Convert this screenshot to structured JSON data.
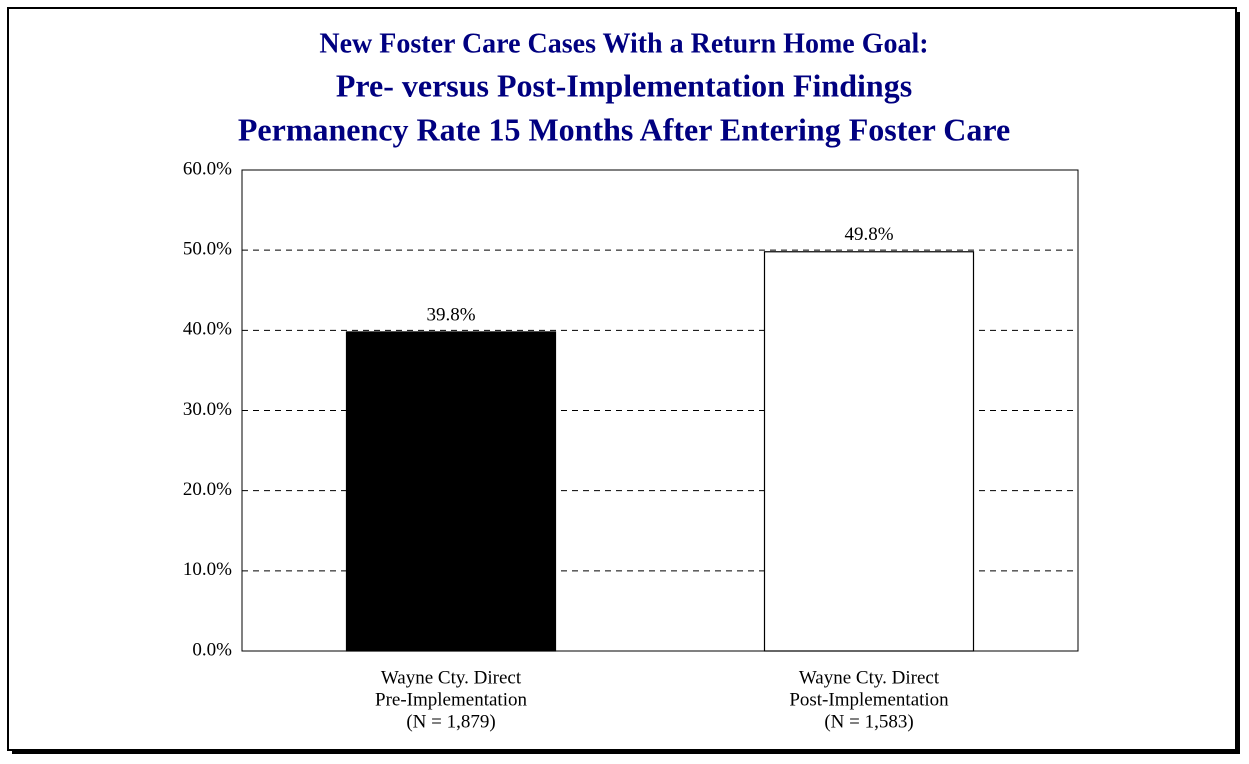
{
  "chart_data": {
    "type": "bar",
    "title_lines": [
      "New Foster Care Cases With a Return Home Goal:",
      "Pre- versus Post-Implementation Findings",
      "Permanency Rate 15 Months After Entering Foster Care"
    ],
    "categories": [
      [
        "Wayne Cty. Direct",
        "Pre-Implementation",
        "(N = 1,879)"
      ],
      [
        "Wayne Cty. Direct",
        "Post-Implementation",
        "(N = 1,583)"
      ]
    ],
    "values": [
      39.8,
      49.8
    ],
    "value_labels": [
      "39.8%",
      "49.8%"
    ],
    "colors": [
      "#000000",
      "#ffffff"
    ],
    "ylim": [
      0,
      60
    ],
    "yticks": [
      {
        "value": 0,
        "label": "0.0%"
      },
      {
        "value": 10,
        "label": "10.0%"
      },
      {
        "value": 20,
        "label": "20.0%"
      },
      {
        "value": 30,
        "label": "30.0%"
      },
      {
        "value": 40,
        "label": "40.0%"
      },
      {
        "value": 50,
        "label": "50.0%"
      },
      {
        "value": 60,
        "label": "60.0%"
      }
    ],
    "grid": true
  }
}
